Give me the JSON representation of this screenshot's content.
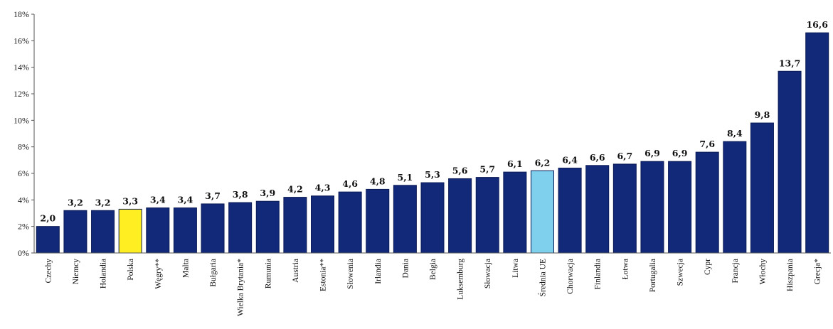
{
  "chart_data": {
    "type": "bar",
    "title": "",
    "xlabel": "",
    "ylabel": "",
    "ylim": [
      0,
      18
    ],
    "yticks": [
      "0%",
      "2%",
      "4%",
      "6%",
      "8%",
      "10%",
      "12%",
      "14%",
      "16%",
      "18%"
    ],
    "ytick_values": [
      0,
      2,
      4,
      6,
      8,
      10,
      12,
      14,
      16,
      18
    ],
    "grid": false,
    "legend": "none",
    "categories": [
      "Czechy",
      "Niemcy",
      "Holandia",
      "Polska",
      "Węgry**",
      "Malta",
      "Bułgaria",
      "Wielka Brytania*",
      "Rumunia",
      "Austria",
      "Estonia**",
      "Słowenia",
      "Irlandia",
      "Dania",
      "Belgia",
      "Luksemburg",
      "Słowacja",
      "Litwa",
      "Średnia UE",
      "Chorwacja",
      "Finlandia",
      "Łotwa",
      "Portugalia",
      "Szwecja",
      "Cypr",
      "Francja",
      "Włochy",
      "Hiszpania",
      "Grecja*"
    ],
    "values": [
      2.0,
      3.2,
      3.2,
      3.3,
      3.4,
      3.4,
      3.7,
      3.8,
      3.9,
      4.2,
      4.3,
      4.6,
      4.8,
      5.1,
      5.3,
      5.6,
      5.7,
      6.1,
      6.2,
      6.4,
      6.6,
      6.7,
      6.9,
      6.9,
      7.6,
      8.4,
      9.8,
      13.7,
      16.6
    ],
    "value_labels": [
      "2,0",
      "3,2",
      "3,2",
      "3,3",
      "3,4",
      "3,4",
      "3,7",
      "3,8",
      "3,9",
      "4,2",
      "4,3",
      "4,6",
      "4,8",
      "5,1",
      "5,3",
      "5,6",
      "5,7",
      "6,1",
      "6,2",
      "6,4",
      "6,6",
      "6,7",
      "6,9",
      "6,9",
      "7,6",
      "8,4",
      "9,8",
      "13,7",
      "16,6"
    ],
    "colors": {
      "default": "#12297a",
      "highlight_poland": "#ffee22",
      "highlight_eu_average": "#7fd0ec"
    },
    "highlighted": {
      "Polska": "highlight_poland",
      "Średnia UE": "highlight_eu_average"
    }
  }
}
